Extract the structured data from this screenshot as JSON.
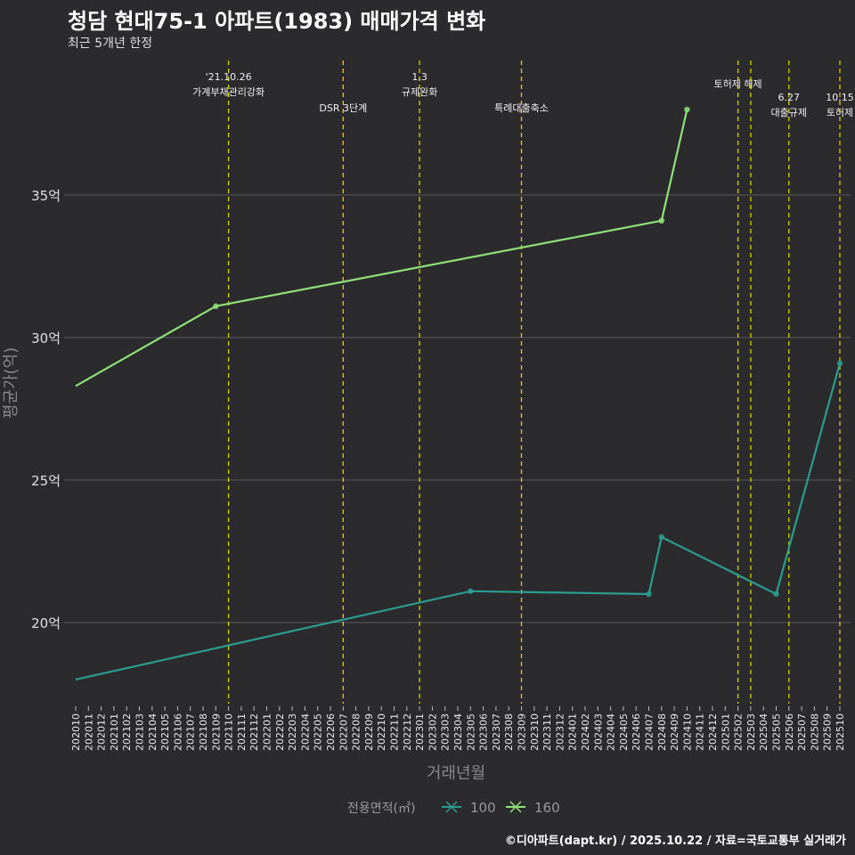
{
  "chart_data": {
    "type": "line",
    "title": "청담 현대75-1 아파트(1983) 매매가격 변화",
    "subtitle": "최근 5개년 한정",
    "xlabel": "거래년월",
    "ylabel": "평균가(억)",
    "ylim": [
      17,
      39
    ],
    "yticks": [
      20,
      25,
      30,
      35
    ],
    "ytick_labels": [
      "20억",
      "25억",
      "30억",
      "35억"
    ],
    "x_start": "2020-10",
    "x_end": "2025-10",
    "grid": true,
    "legend_position": "bottom",
    "legend_title": "전용면적(㎡)",
    "series": [
      {
        "name": "100",
        "color": "#2a9d8f",
        "points": [
          [
            "2020-10",
            18.0
          ],
          [
            "2023-05",
            21.1
          ],
          [
            "2024-07",
            21.0
          ],
          [
            "2024-08",
            23.0
          ],
          [
            "2025-05",
            21.0
          ],
          [
            "2025-10",
            29.1
          ]
        ]
      },
      {
        "name": "160",
        "color": "#90e07a",
        "points": [
          [
            "2020-10",
            28.3
          ],
          [
            "2021-09",
            31.1
          ],
          [
            "2024-08",
            34.1
          ],
          [
            "2024-10",
            38.0
          ]
        ]
      }
    ],
    "events": [
      {
        "month": "2021-10",
        "lines": [
          "'21.10.26",
          "가계부채관리강화"
        ],
        "row": 0
      },
      {
        "month": "2022-07",
        "lines": [
          "DSR 3단계"
        ],
        "row": 2
      },
      {
        "month": "2023-01",
        "lines": [
          "1.3",
          "규제완화"
        ],
        "row": 0
      },
      {
        "month": "2023-09",
        "lines": [
          "특례대출축소"
        ],
        "row": 2
      },
      {
        "month": "2025-02",
        "lines": [
          "토허제 해제"
        ],
        "row": 1
      },
      {
        "month": "2025-03",
        "lines": [],
        "row": 1
      },
      {
        "month": "2025-06",
        "lines": [
          "6.27",
          "대출규제"
        ],
        "row": 3
      },
      {
        "month": "2025-10",
        "lines": [
          "10.15",
          "토허제"
        ],
        "row": 3
      }
    ],
    "event_color": "#d4d400"
  },
  "footer": "©디아파트(dapt.kr) / 2025.10.22 / 자료=국토교통부 실거래가"
}
